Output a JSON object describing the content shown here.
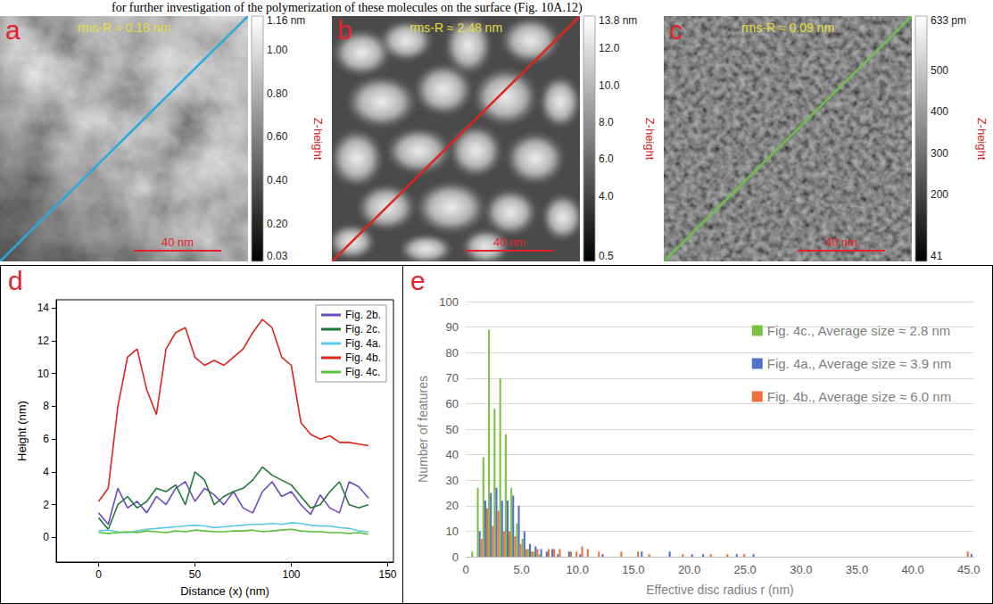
{
  "text_line": "for further investigation of the polymerization of these molecules on the surface (Fig. 10A.12)",
  "images": [
    {
      "label": "a",
      "rms": "rms-R ≈ 0.18 nm",
      "scale_bar": "40 nm",
      "line_color": "#2aa9e0",
      "colorbar": {
        "title": "Z-height",
        "range": [
          0.03,
          1.16
        ],
        "ticks": [
          0.03,
          {
            "value": 0.2,
            "label": "0.20"
          },
          {
            "value": 0.4,
            "label": "0.40"
          },
          {
            "value": 0.6,
            "label": "0.60"
          },
          {
            "value": 0.8,
            "label": "0.80"
          },
          {
            "value": 1.0,
            "label": "1.00"
          },
          {
            "value": 1.16,
            "label": "1.16 nm"
          }
        ]
      }
    },
    {
      "label": "b",
      "rms": "rms-R ≈ 2.48 nm",
      "scale_bar": "40 nm",
      "line_color": "#e0241b",
      "colorbar": {
        "title": "Z-height",
        "range": [
          0.5,
          13.8
        ],
        "ticks": [
          0.5,
          {
            "value": 4,
            "label": "4.0"
          },
          {
            "value": 6,
            "label": "6.0"
          },
          {
            "value": 8,
            "label": "8.0"
          },
          {
            "value": 10,
            "label": "10.0"
          },
          {
            "value": 12,
            "label": "12.0"
          },
          {
            "value": 13.8,
            "label": "13.8 nm"
          }
        ]
      }
    },
    {
      "label": "c",
      "rms": "rms-R ≈ 0.09 nm",
      "scale_bar": "40 nm",
      "line_color": "#6cc04a",
      "colorbar": {
        "title": "Z-height",
        "range": [
          41,
          633
        ],
        "ticks": [
          41,
          200,
          300,
          400,
          500,
          {
            "value": 633,
            "label": "633 pm"
          }
        ]
      }
    }
  ],
  "chart_data": [
    {
      "label": "d",
      "type": "line",
      "x": [
        0,
        5,
        10,
        15,
        20,
        25,
        30,
        35,
        40,
        45,
        50,
        55,
        60,
        65,
        70,
        75,
        80,
        85,
        90,
        95,
        100,
        105,
        110,
        115,
        120,
        125,
        130,
        135,
        140
      ],
      "series": [
        {
          "name": "Fig. 2b.",
          "color": "#6a4bc4",
          "values": [
            1.5,
            0.8,
            3.0,
            1.8,
            2.2,
            1.5,
            2.5,
            2.0,
            3.0,
            3.4,
            2.2,
            3.0,
            2.6,
            2.0,
            2.8,
            1.8,
            1.5,
            2.8,
            3.4,
            2.5,
            2.8,
            2.0,
            1.4,
            2.6,
            1.8,
            1.5,
            3.4,
            3.1,
            2.4
          ]
        },
        {
          "name": "Fig. 2c.",
          "color": "#1f7a3a",
          "values": [
            1.2,
            0.5,
            2.0,
            2.5,
            1.8,
            2.2,
            3.0,
            2.8,
            3.2,
            2.0,
            4.0,
            3.5,
            2.0,
            2.5,
            2.8,
            3.0,
            3.5,
            4.3,
            3.8,
            3.5,
            3.2,
            2.5,
            1.8,
            2.0,
            2.8,
            3.4,
            2.0,
            1.8,
            2.0
          ]
        },
        {
          "name": "Fig. 4a.",
          "color": "#5ec8e8",
          "values": [
            0.4,
            0.45,
            0.35,
            0.3,
            0.4,
            0.5,
            0.55,
            0.6,
            0.65,
            0.7,
            0.75,
            0.7,
            0.6,
            0.65,
            0.7,
            0.75,
            0.8,
            0.8,
            0.85,
            0.8,
            0.9,
            0.85,
            0.75,
            0.7,
            0.7,
            0.6,
            0.55,
            0.4,
            0.35
          ]
        },
        {
          "name": "Fig. 4b.",
          "color": "#e0241b",
          "values": [
            2.2,
            3.0,
            8.0,
            11.0,
            11.5,
            9.0,
            7.5,
            11.5,
            12.5,
            12.8,
            11.0,
            10.5,
            10.8,
            10.5,
            11.0,
            11.5,
            12.5,
            13.3,
            12.8,
            11.0,
            10.5,
            7.0,
            6.3,
            6.0,
            6.2,
            5.8,
            5.8,
            5.7,
            5.6
          ]
        },
        {
          "name": "Fig. 4c.",
          "color": "#5bbf3a",
          "values": [
            0.3,
            0.25,
            0.3,
            0.35,
            0.3,
            0.4,
            0.35,
            0.3,
            0.4,
            0.35,
            0.45,
            0.4,
            0.35,
            0.35,
            0.4,
            0.4,
            0.45,
            0.35,
            0.4,
            0.45,
            0.5,
            0.4,
            0.35,
            0.35,
            0.3,
            0.3,
            0.25,
            0.3,
            0.2
          ]
        }
      ],
      "xlim": [
        -22,
        153
      ],
      "xticks": [
        0,
        50,
        100,
        150
      ],
      "ylim": [
        -1.5,
        14.5
      ],
      "yticks": [
        0,
        2,
        4,
        6,
        8,
        10,
        12,
        14
      ],
      "xlabel": "Distance (x) (nm)",
      "ylabel": "Height (nm)",
      "legend": "upper right",
      "grid": false
    },
    {
      "label": "e",
      "type": "histogram",
      "bins": [
        0,
        0.5,
        1,
        1.5,
        2,
        2.5,
        3,
        3.5,
        4,
        4.5,
        5,
        5.5,
        6,
        6.5,
        7,
        7.5,
        8,
        8.5,
        9,
        9.5,
        10,
        10.5,
        11,
        11.5,
        12,
        12.5,
        13,
        13.5,
        14,
        14.5,
        15,
        15.5,
        16,
        16.5,
        17,
        17.5,
        18,
        18.5,
        19,
        19.5,
        20,
        20.5,
        21,
        21.5,
        22,
        22.5,
        23,
        23.5,
        24,
        24.5,
        25,
        25.5,
        26,
        26.5,
        27,
        27.5,
        28,
        28.5,
        29,
        29.5,
        30,
        30.5,
        31,
        31.5,
        32,
        32.5,
        33,
        33.5,
        34,
        34.5,
        35,
        35.5,
        36,
        36.5,
        37,
        37.5,
        38,
        38.5,
        39,
        39.5,
        40,
        40.5,
        41,
        41.5,
        42,
        42.5,
        43,
        43.5,
        44,
        44.5,
        45,
        45.5
      ],
      "series": [
        {
          "name": "Fig. 4c., Average size ≈ 2.8 nm",
          "color": "#7cc242",
          "values": [
            0,
            2,
            27,
            39,
            89,
            58,
            70,
            48,
            27,
            13,
            7,
            3,
            2,
            1,
            0,
            0,
            0,
            0,
            0,
            0,
            0,
            0,
            0,
            0,
            0,
            0,
            0,
            0,
            0,
            0,
            0,
            0,
            0,
            0,
            0,
            0,
            0,
            0,
            0,
            0,
            0,
            0,
            0,
            0,
            0,
            0,
            0,
            0,
            0,
            0,
            0,
            0,
            0,
            0,
            0,
            0,
            0,
            0,
            0,
            0,
            0,
            0,
            0,
            0,
            0,
            0,
            0,
            0,
            0,
            0,
            0,
            0,
            0,
            0,
            0,
            0,
            0,
            0,
            0,
            0,
            0,
            0,
            0,
            0,
            0,
            0,
            0,
            0,
            0,
            0,
            0
          ]
        },
        {
          "name": "Fig. 4a., Average size ≈ 3.9 nm",
          "color": "#4f72c9",
          "values": [
            0,
            0,
            10,
            22,
            25,
            27,
            22,
            22,
            24,
            20,
            10,
            5,
            4,
            3,
            2,
            3,
            1,
            0,
            2,
            0,
            1,
            0,
            0,
            0,
            1,
            0,
            0,
            0,
            0,
            0,
            0,
            2,
            0,
            0,
            0,
            0,
            2,
            0,
            0,
            0,
            1,
            0,
            1,
            0,
            0,
            0,
            0,
            0,
            1,
            0,
            0,
            1,
            0,
            0,
            0,
            0,
            0,
            0,
            0,
            0,
            0,
            0,
            0,
            0,
            0,
            0,
            0,
            0,
            0,
            0,
            0,
            0,
            0,
            0,
            0,
            0,
            0,
            0,
            0,
            0,
            0,
            0,
            0,
            0,
            0,
            0,
            0,
            0,
            0,
            0,
            1
          ]
        },
        {
          "name": "Fig. 4b., Average size ≈ 6.0 nm",
          "color": "#f0703c",
          "values": [
            0,
            0,
            7,
            19,
            12,
            18,
            10,
            10,
            8,
            5,
            3,
            2,
            3,
            0,
            3,
            3,
            3,
            0,
            2,
            2,
            4,
            3,
            0,
            2,
            0,
            0,
            0,
            2,
            0,
            0,
            2,
            0,
            1,
            0,
            0,
            0,
            0,
            0,
            1,
            0,
            0,
            0,
            0,
            1,
            0,
            0,
            1,
            0,
            0,
            1,
            0,
            0,
            0,
            0,
            0,
            0,
            0,
            0,
            0,
            0,
            0,
            0,
            0,
            0,
            0,
            0,
            0,
            0,
            0,
            0,
            0,
            0,
            0,
            0,
            0,
            0,
            0,
            0,
            0,
            0,
            0,
            0,
            0,
            0,
            0,
            0,
            0,
            0,
            0,
            2,
            0
          ]
        }
      ],
      "xlim": [
        0,
        45.5
      ],
      "xticks": [
        0,
        {
          "value": 5,
          "label": "5.0"
        },
        {
          "value": 10,
          "label": "10.0"
        },
        {
          "value": 15,
          "label": "15.0"
        },
        {
          "value": 20,
          "label": "20.0"
        },
        {
          "value": 25,
          "label": "25.0"
        },
        {
          "value": 30,
          "label": "30.0"
        },
        {
          "value": 35,
          "label": "35.0"
        },
        {
          "value": 40,
          "label": "40.0"
        },
        {
          "value": 45,
          "label": "45.0"
        }
      ],
      "ylim": [
        0,
        100
      ],
      "yticks": [
        0,
        10,
        20,
        30,
        40,
        50,
        60,
        70,
        80,
        90,
        100
      ],
      "xlabel": "Effective disc radius r (nm)",
      "ylabel": "Number of features",
      "legend": "upper right",
      "grid": true
    }
  ]
}
